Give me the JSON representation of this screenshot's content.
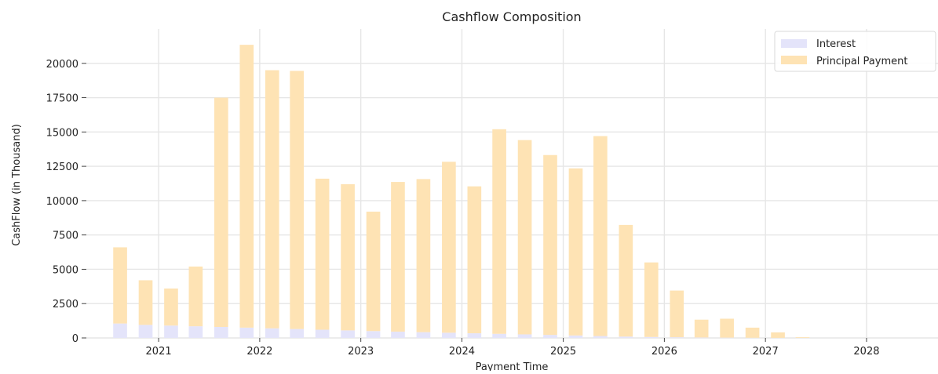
{
  "chart_data": {
    "type": "bar",
    "stacked": true,
    "title": "Cashflow Composition",
    "xlabel": "Payment Time",
    "ylabel": "CashFlow (in Thousand)",
    "ylim": [
      0,
      22500
    ],
    "xlim": [
      "2020-04-15",
      "2028-09-15"
    ],
    "y_ticks": [
      0,
      2500,
      5000,
      7500,
      10000,
      12500,
      15000,
      17500,
      20000
    ],
    "y_tick_labels": [
      "0",
      "2500",
      "5000",
      "7500",
      "10000",
      "12500",
      "15000",
      "17500",
      "20000"
    ],
    "x_ticks": [
      "2021-01-01",
      "2022-01-01",
      "2023-01-01",
      "2024-01-01",
      "2025-01-01",
      "2026-01-01",
      "2027-01-01",
      "2028-01-01"
    ],
    "x_tick_labels": [
      "2021",
      "2022",
      "2023",
      "2024",
      "2025",
      "2026",
      "2027",
      "2028"
    ],
    "grid": true,
    "legend_position": "top-right",
    "x": [
      "2020-08-15",
      "2020-11-15",
      "2021-02-15",
      "2021-05-15",
      "2021-08-15",
      "2021-11-15",
      "2022-02-15",
      "2022-05-15",
      "2022-08-15",
      "2022-11-15",
      "2023-02-15",
      "2023-05-15",
      "2023-08-15",
      "2023-11-15",
      "2024-02-15",
      "2024-05-15",
      "2024-08-15",
      "2024-11-15",
      "2025-02-15",
      "2025-05-15",
      "2025-08-15",
      "2025-11-15",
      "2026-02-15",
      "2026-05-15",
      "2026-08-15",
      "2026-11-15",
      "2027-02-15",
      "2027-05-15"
    ],
    "series": [
      {
        "name": "Interest",
        "color": "#e4e4fa",
        "values": [
          1050,
          950,
          900,
          850,
          800,
          750,
          700,
          650,
          600,
          550,
          500,
          460,
          420,
          380,
          340,
          300,
          260,
          220,
          180,
          140,
          100,
          70,
          50,
          30,
          20,
          10,
          5,
          2
        ]
      },
      {
        "name": "Principal Payment",
        "color": "#fee3b4",
        "values": [
          5550,
          3250,
          2700,
          4350,
          16700,
          20600,
          18800,
          18800,
          11000,
          10650,
          8700,
          10900,
          11150,
          12450,
          10700,
          14900,
          14150,
          13100,
          12170,
          14560,
          8130,
          5430,
          3400,
          1300,
          1380,
          740,
          400,
          50
        ]
      }
    ]
  }
}
